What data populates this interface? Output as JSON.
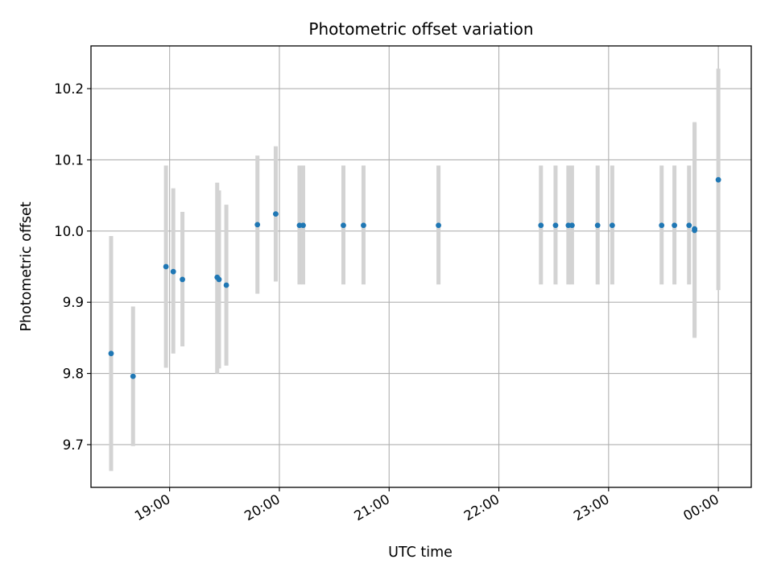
{
  "chart_data": {
    "type": "scatter",
    "title": "Photometric offset variation",
    "xlabel": "UTC time",
    "ylabel": "Photometric offset",
    "ylim": [
      9.64,
      10.26
    ],
    "xlim": [
      "18:17",
      "00:18"
    ],
    "x_ticks": [
      "19:00",
      "20:00",
      "21:00",
      "22:00",
      "23:00",
      "00:00"
    ],
    "y_ticks": [
      "9.7",
      "9.8",
      "9.9",
      "10.0",
      "10.1",
      "10.2"
    ],
    "grid": true,
    "marker_color": "#1f77b4",
    "errorbar_color": "#d3d3d3",
    "points": [
      {
        "x": "18:28",
        "y": 9.828,
        "ymin": 9.663,
        "ymax": 9.993
      },
      {
        "x": "18:40",
        "y": 9.796,
        "ymin": 9.698,
        "ymax": 9.894
      },
      {
        "x": "18:58",
        "y": 9.95,
        "ymin": 9.808,
        "ymax": 10.092
      },
      {
        "x": "19:02",
        "y": 9.943,
        "ymin": 9.828,
        "ymax": 10.06
      },
      {
        "x": "19:07",
        "y": 9.932,
        "ymin": 9.838,
        "ymax": 10.027
      },
      {
        "x": "19:26",
        "y": 9.935,
        "ymin": 9.8,
        "ymax": 10.068
      },
      {
        "x": "19:27",
        "y": 9.932,
        "ymin": 9.807,
        "ymax": 10.057
      },
      {
        "x": "19:31",
        "y": 9.924,
        "ymin": 9.811,
        "ymax": 10.037
      },
      {
        "x": "19:48",
        "y": 10.009,
        "ymin": 9.912,
        "ymax": 10.106
      },
      {
        "x": "19:58",
        "y": 10.024,
        "ymin": 9.929,
        "ymax": 10.119
      },
      {
        "x": "20:11",
        "y": 10.008,
        "ymin": 9.925,
        "ymax": 10.092
      },
      {
        "x": "20:13",
        "y": 10.008,
        "ymin": 9.925,
        "ymax": 10.092
      },
      {
        "x": "20:35",
        "y": 10.008,
        "ymin": 9.925,
        "ymax": 10.092
      },
      {
        "x": "20:46",
        "y": 10.008,
        "ymin": 9.925,
        "ymax": 10.092
      },
      {
        "x": "21:27",
        "y": 10.008,
        "ymin": 9.925,
        "ymax": 10.092
      },
      {
        "x": "22:23",
        "y": 10.008,
        "ymin": 9.925,
        "ymax": 10.092
      },
      {
        "x": "22:31",
        "y": 10.008,
        "ymin": 9.925,
        "ymax": 10.092
      },
      {
        "x": "22:38",
        "y": 10.008,
        "ymin": 9.925,
        "ymax": 10.092
      },
      {
        "x": "22:40",
        "y": 10.008,
        "ymin": 9.925,
        "ymax": 10.092
      },
      {
        "x": "22:54",
        "y": 10.008,
        "ymin": 9.925,
        "ymax": 10.092
      },
      {
        "x": "23:02",
        "y": 10.008,
        "ymin": 9.925,
        "ymax": 10.092
      },
      {
        "x": "23:29",
        "y": 10.008,
        "ymin": 9.925,
        "ymax": 10.092
      },
      {
        "x": "23:36",
        "y": 10.008,
        "ymin": 9.925,
        "ymax": 10.092
      },
      {
        "x": "23:44",
        "y": 10.008,
        "ymin": 9.925,
        "ymax": 10.092
      },
      {
        "x": "23:47",
        "y": 10.003,
        "ymin": 9.85,
        "ymax": 10.153
      },
      {
        "x": "23:47",
        "y": 10.001,
        "ymin": 9.852,
        "ymax": 10.151
      },
      {
        "x": "00:00",
        "y": 10.072,
        "ymin": 9.917,
        "ymax": 10.228
      }
    ]
  }
}
